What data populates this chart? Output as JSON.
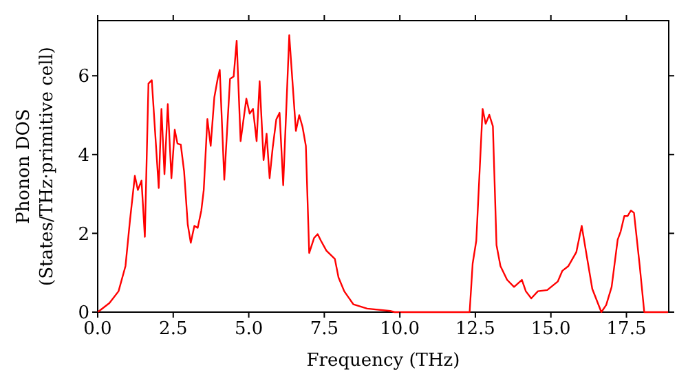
{
  "chart_data": {
    "type": "line",
    "xlabel": "Frequency (THz)",
    "ylabel": "Phonon DOS\n(States/THz·primitive cell)",
    "series": [
      {
        "color": "#ff0000",
        "x": [
          0,
          0.39,
          0.69,
          0.92,
          1.07,
          1.23,
          1.33,
          1.45,
          1.56,
          1.68,
          1.79,
          2.02,
          2.11,
          2.21,
          2.32,
          2.44,
          2.55,
          2.64,
          2.75,
          2.86,
          2.98,
          3.08,
          3.2,
          3.31,
          3.43,
          3.51,
          3.63,
          3.74,
          3.86,
          3.97,
          4.04,
          4.19,
          4.38,
          4.5,
          4.6,
          4.73,
          4.92,
          5.03,
          5.14,
          5.26,
          5.36,
          5.49,
          5.59,
          5.69,
          5.79,
          5.91,
          6.02,
          6.14,
          6.34,
          6.56,
          6.67,
          6.78,
          6.89,
          7.0,
          7.16,
          7.28,
          7.39,
          7.57,
          7.85,
          7.97,
          8.16,
          8.46,
          8.92,
          9.68,
          9.83,
          11.35,
          12.31,
          12.41,
          12.53,
          12.74,
          12.84,
          12.96,
          13.08,
          13.2,
          13.33,
          13.55,
          13.78,
          14.04,
          14.17,
          14.35,
          14.57,
          14.88,
          15.23,
          15.38,
          15.58,
          15.84,
          16.02,
          16.19,
          16.37,
          16.67,
          16.83,
          17.01,
          17.21,
          17.31,
          17.43,
          17.54,
          17.65,
          17.75,
          17.94,
          18.09,
          18.88
        ],
        "values": [
          0,
          0.23,
          0.53,
          1.17,
          2.34,
          3.46,
          3.1,
          3.34,
          1.91,
          5.8,
          5.89,
          3.15,
          5.16,
          3.5,
          5.28,
          3.4,
          4.63,
          4.28,
          4.25,
          3.57,
          2.23,
          1.76,
          2.19,
          2.14,
          2.58,
          3.1,
          4.9,
          4.22,
          5.45,
          5.92,
          6.15,
          3.36,
          5.92,
          5.98,
          6.89,
          4.34,
          5.42,
          5.04,
          5.16,
          4.34,
          5.86,
          3.86,
          4.53,
          3.4,
          4.16,
          4.89,
          5.06,
          3.22,
          7.03,
          4.6,
          5.0,
          4.7,
          4.22,
          1.5,
          1.88,
          1.98,
          1.81,
          1.56,
          1.35,
          0.88,
          0.53,
          0.2,
          0.09,
          0.03,
          0,
          0,
          0,
          1.23,
          1.81,
          5.16,
          4.78,
          5.01,
          4.72,
          1.7,
          1.17,
          0.82,
          0.64,
          0.82,
          0.53,
          0.35,
          0.53,
          0.56,
          0.78,
          1.05,
          1.17,
          1.52,
          2.19,
          1.41,
          0.59,
          0,
          0.18,
          0.64,
          1.84,
          2.05,
          2.44,
          2.44,
          2.58,
          2.52,
          1.17,
          0,
          0
        ]
      }
    ],
    "xlim": [
      0,
      18.9
    ],
    "xticks": [
      {
        "value": 0,
        "label": "0.0"
      },
      {
        "value": 2.5,
        "label": "2.5"
      },
      {
        "value": 5,
        "label": "5.0"
      },
      {
        "value": 7.5,
        "label": "7.5"
      },
      {
        "value": 10,
        "label": "10.0"
      },
      {
        "value": 12.5,
        "label": "12.5"
      },
      {
        "value": 15,
        "label": "15.0"
      },
      {
        "value": 17.5,
        "label": "17.5"
      }
    ],
    "ylim": [
      0,
      7.4
    ],
    "yticks": [
      0,
      2,
      4,
      6
    ],
    "grid": false,
    "marker": "none",
    "line_style": "solid"
  }
}
